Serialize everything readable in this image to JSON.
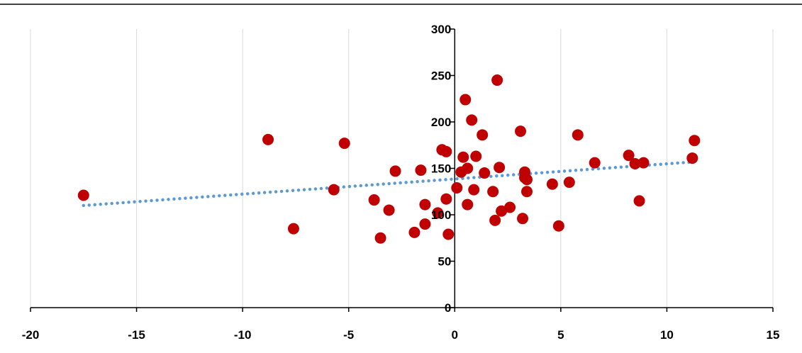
{
  "colors": {
    "point": "#C00000",
    "trendline": "#5B9BD5",
    "gridline": "#D9D9D9",
    "axis": "#000000",
    "frame_border": "#000000"
  },
  "chart_data": {
    "type": "scatter",
    "title": "",
    "xlabel": "",
    "ylabel": "",
    "xlim": [
      -20,
      15
    ],
    "ylim": [
      0,
      300
    ],
    "x_ticks": [
      -20,
      -15,
      -10,
      -5,
      0,
      5,
      10,
      15
    ],
    "x_tick_labels": [
      "-20",
      "-15",
      "-10",
      "-5",
      "0",
      "5",
      "10",
      "15"
    ],
    "y_ticks": [
      0,
      50,
      100,
      150,
      200,
      250,
      300
    ],
    "y_tick_labels": [
      "0",
      "50",
      "100",
      "150",
      "200",
      "250",
      "300"
    ],
    "grid": {
      "vertical": true,
      "horizontal": false
    },
    "legend": "none",
    "points": [
      {
        "x": -17.5,
        "y": 121
      },
      {
        "x": -8.8,
        "y": 181
      },
      {
        "x": -7.6,
        "y": 85
      },
      {
        "x": -5.7,
        "y": 127
      },
      {
        "x": -5.2,
        "y": 177
      },
      {
        "x": -3.8,
        "y": 116
      },
      {
        "x": -3.5,
        "y": 75
      },
      {
        "x": -3.1,
        "y": 105
      },
      {
        "x": -2.8,
        "y": 147
      },
      {
        "x": -1.9,
        "y": 81
      },
      {
        "x": -1.6,
        "y": 148
      },
      {
        "x": -1.4,
        "y": 111
      },
      {
        "x": -1.4,
        "y": 90
      },
      {
        "x": -0.8,
        "y": 102
      },
      {
        "x": -0.6,
        "y": 170
      },
      {
        "x": -0.4,
        "y": 168
      },
      {
        "x": -0.3,
        "y": 79
      },
      {
        "x": -0.4,
        "y": 117
      },
      {
        "x": 0.1,
        "y": 129
      },
      {
        "x": 0.3,
        "y": 146
      },
      {
        "x": 0.4,
        "y": 162
      },
      {
        "x": 0.6,
        "y": 150
      },
      {
        "x": 0.5,
        "y": 224
      },
      {
        "x": 0.6,
        "y": 111
      },
      {
        "x": 0.8,
        "y": 202
      },
      {
        "x": 0.9,
        "y": 127
      },
      {
        "x": 1.0,
        "y": 163
      },
      {
        "x": 1.3,
        "y": 186
      },
      {
        "x": 1.4,
        "y": 145
      },
      {
        "x": 1.8,
        "y": 125
      },
      {
        "x": 1.9,
        "y": 94
      },
      {
        "x": 2.0,
        "y": 245
      },
      {
        "x": 2.1,
        "y": 151
      },
      {
        "x": 2.2,
        "y": 104
      },
      {
        "x": 2.6,
        "y": 108
      },
      {
        "x": 3.1,
        "y": 190
      },
      {
        "x": 3.2,
        "y": 96
      },
      {
        "x": 3.3,
        "y": 146
      },
      {
        "x": 3.3,
        "y": 140
      },
      {
        "x": 3.4,
        "y": 138
      },
      {
        "x": 3.4,
        "y": 125
      },
      {
        "x": 4.6,
        "y": 133
      },
      {
        "x": 4.9,
        "y": 88
      },
      {
        "x": 5.4,
        "y": 135
      },
      {
        "x": 5.8,
        "y": 186
      },
      {
        "x": 6.6,
        "y": 156
      },
      {
        "x": 8.2,
        "y": 164
      },
      {
        "x": 8.5,
        "y": 155
      },
      {
        "x": 8.7,
        "y": 115
      },
      {
        "x": 8.9,
        "y": 156
      },
      {
        "x": 11.2,
        "y": 161
      },
      {
        "x": 11.3,
        "y": 180
      }
    ],
    "trendline": {
      "type": "linear",
      "style": "dotted",
      "x_start": -17.5,
      "y_start": 110,
      "x_end": 11.3,
      "y_end": 157
    }
  }
}
